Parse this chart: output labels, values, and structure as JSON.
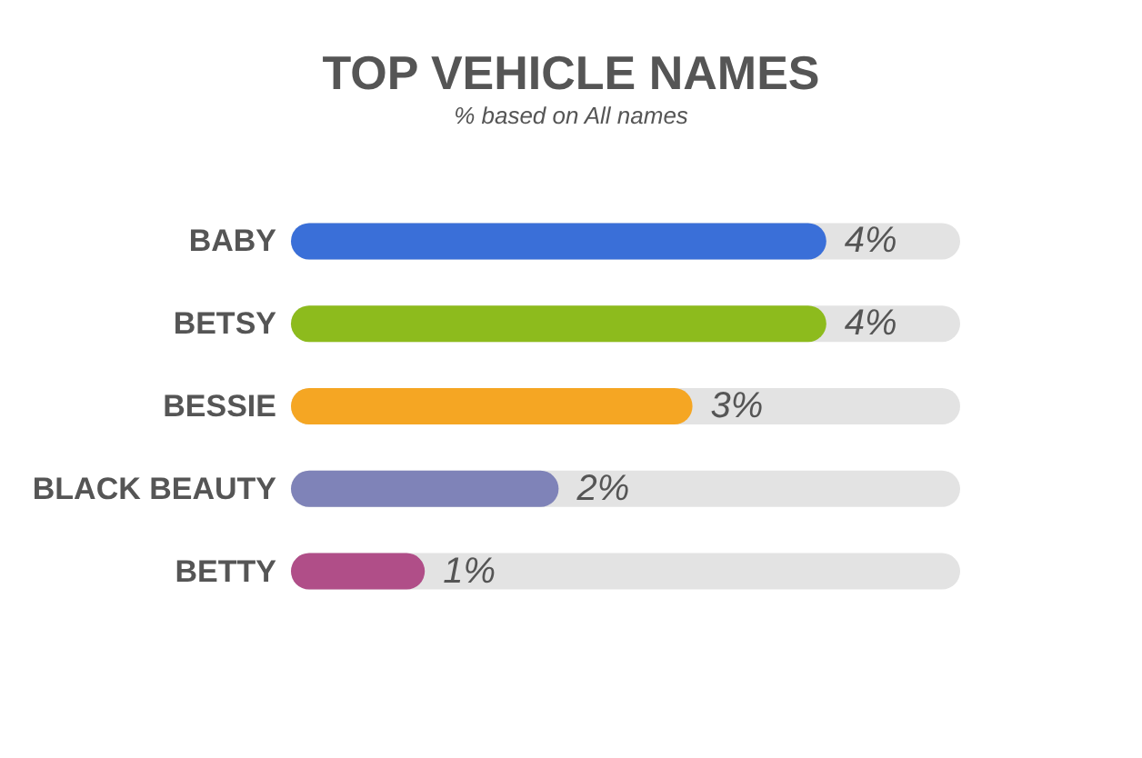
{
  "chart_data": {
    "type": "bar",
    "orientation": "horizontal",
    "title": "TOP VEHICLE NAMES",
    "subtitle": "% based on All names",
    "categories": [
      "BABY",
      "BETSY",
      "BESSIE",
      "BLACK BEAUTY",
      "BETTY"
    ],
    "values": [
      4,
      4,
      3,
      2,
      1
    ],
    "colors": [
      "#3a6fd8",
      "#8dbb1d",
      "#f5a623",
      "#7f83b8",
      "#b04e88"
    ],
    "value_labels": [
      "4%",
      "4%",
      "3%",
      "2%",
      "1%"
    ]
  }
}
